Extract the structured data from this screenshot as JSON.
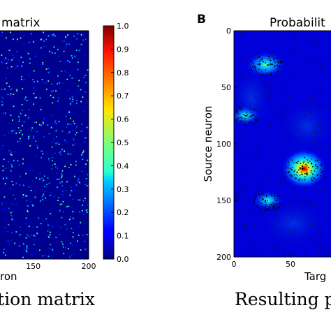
{
  "panel_a": {
    "title": "matrix",
    "xlabel": "ron",
    "caption": "ction matrix"
  },
  "panel_b": {
    "letter": "B",
    "title": "Probabilit",
    "xlabel": "Targ",
    "ylabel": "Source neuron",
    "caption": "Resulting p"
  },
  "colorbar": {
    "ticks": [
      "0.0",
      "0.1",
      "0.2",
      "0.3",
      "0.4",
      "0.5",
      "0.6",
      "0.7",
      "0.8",
      "0.9",
      "1.0"
    ]
  },
  "chart_data": [
    {
      "type": "heatmap",
      "title": "matrix",
      "xlabel": "ron",
      "x_tick_labels": [
        "150",
        "200"
      ],
      "x_ticks": [
        150,
        200
      ],
      "xlim": [
        0,
        200
      ],
      "value_range": [
        0.0,
        1.0
      ],
      "description_values": {
        "background_value": 0.02,
        "sparse_point_values": "scattered points mostly 0.1–0.4"
      }
    },
    {
      "type": "heatmap",
      "title": "Probabilit",
      "xlabel": "Targ",
      "ylabel": "Source neuron",
      "x_tick_labels": [
        "0",
        "50"
      ],
      "x_ticks": [
        0,
        50
      ],
      "y_tick_labels": [
        "0",
        "50",
        "100",
        "150",
        "200"
      ],
      "y_ticks": [
        0,
        50,
        100,
        150,
        200
      ],
      "xlim": [
        0,
        200
      ],
      "ylim": [
        0,
        200
      ],
      "y_inverted": true,
      "hotspots": [
        {
          "x": 28,
          "y": 30,
          "peak": 0.55
        },
        {
          "x": 10,
          "y": 75,
          "peak": 0.35
        },
        {
          "x": 62,
          "y": 122,
          "peak": 0.95
        },
        {
          "x": 30,
          "y": 150,
          "peak": 0.45
        }
      ]
    }
  ]
}
